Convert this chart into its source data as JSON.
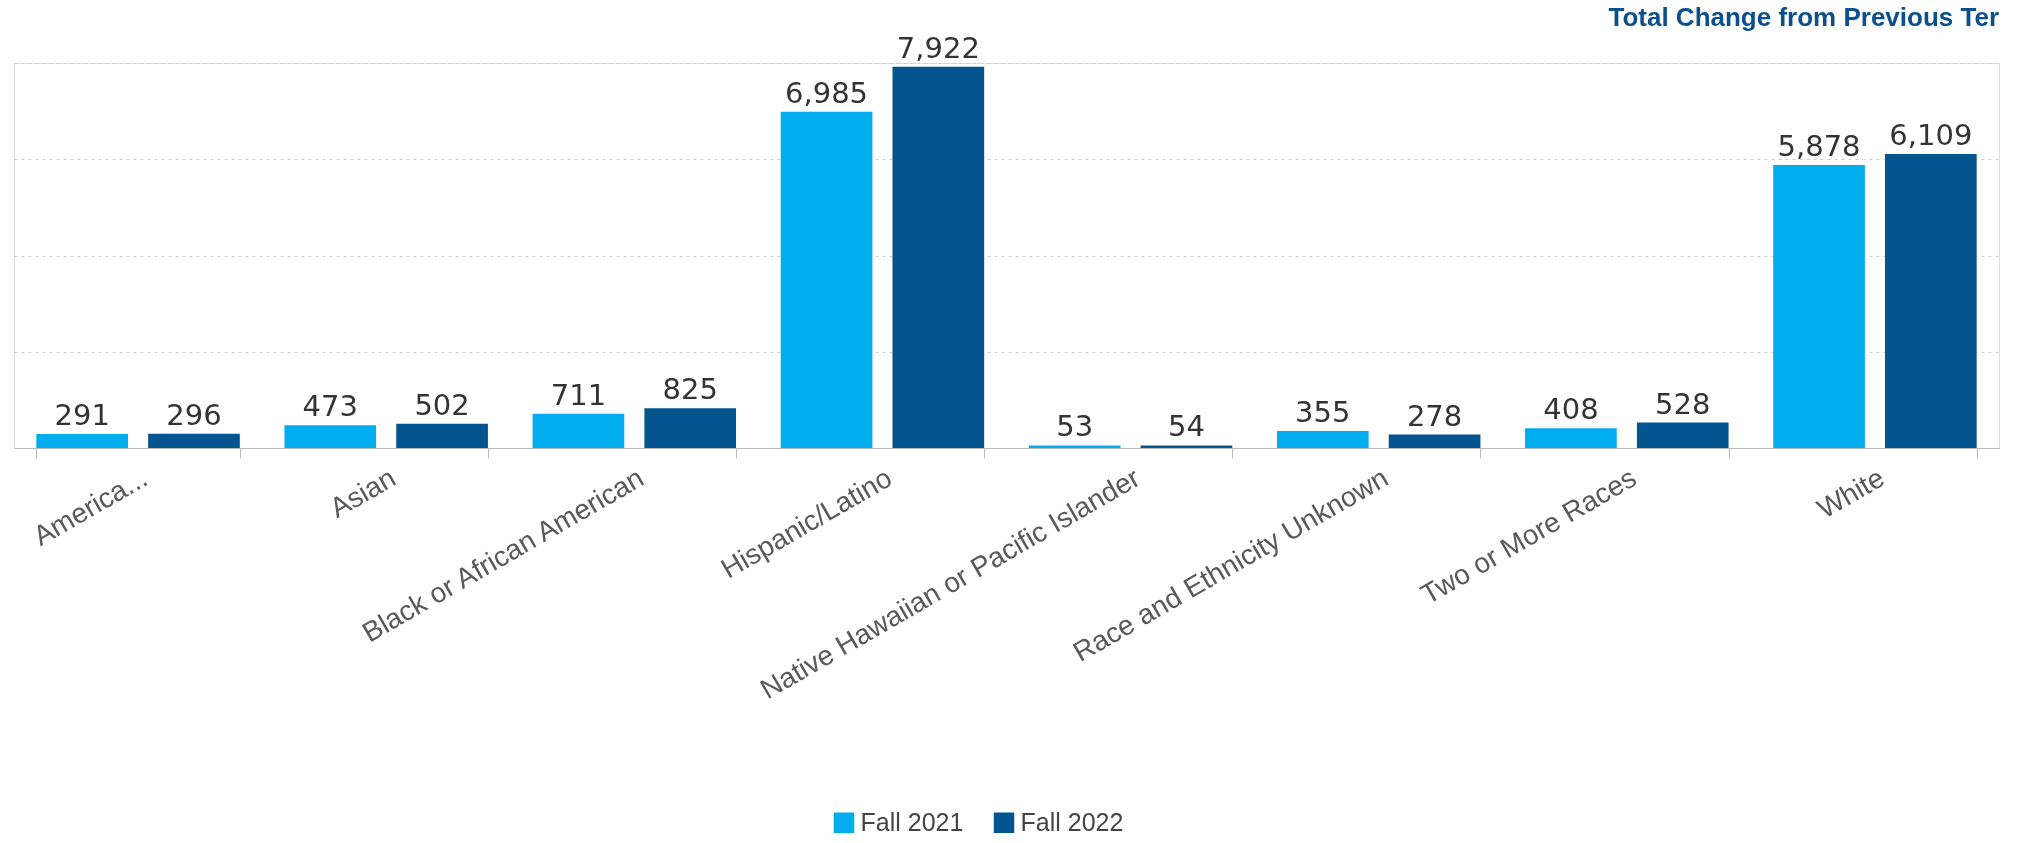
{
  "chart_data": {
    "type": "bar",
    "title": "Total Change from Previous Ter",
    "categories": [
      "America...",
      "Asian",
      "Black or African American",
      "Hispanic/Latino",
      "Native Hawaiian or Pacific Islander",
      "Race and Ethnicity Unknown",
      "Two or More Races",
      "White"
    ],
    "series": [
      {
        "name": "Fall 2021",
        "color": "#00adef",
        "values": [
          291,
          473,
          711,
          6985,
          53,
          355,
          408,
          5878
        ],
        "value_labels": [
          "291",
          "473",
          "711",
          "6,985",
          "53",
          "355",
          "408",
          "5,878"
        ]
      },
      {
        "name": "Fall 2022",
        "color": "#03548f",
        "values": [
          296,
          502,
          825,
          7922,
          54,
          278,
          528,
          6109
        ],
        "value_labels": [
          "296",
          "502",
          "825",
          "7,922",
          "54",
          "278",
          "528",
          "6,109"
        ]
      }
    ],
    "ylim": [
      0,
      8000
    ],
    "yticks": [
      {
        "value": 0,
        "label": null
      },
      {
        "value": 2000,
        "label": null
      },
      {
        "value": 4000,
        "label": null
      },
      {
        "value": 6000,
        "label": null
      },
      {
        "value": 8000,
        "label": null
      }
    ],
    "grid": "y",
    "legend": "bottom",
    "tick_labels": "x"
  }
}
